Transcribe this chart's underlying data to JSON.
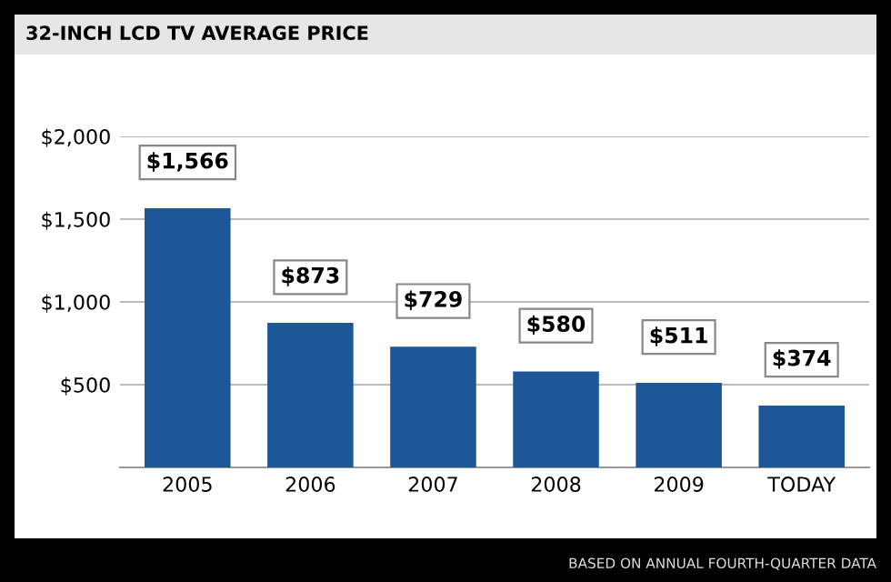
{
  "chart_data": {
    "type": "bar",
    "title": "32-INCH LCD TV AVERAGE PRICE",
    "categories": [
      "2005",
      "2006",
      "2007",
      "2008",
      "2009",
      "TODAY"
    ],
    "values": [
      1566,
      873,
      729,
      580,
      511,
      374
    ],
    "value_labels": [
      "$1,566",
      "$873",
      "$729",
      "$580",
      "$511",
      "$374"
    ],
    "color": "#1d5797",
    "ylim": [
      0,
      2000
    ],
    "yticks": [
      {
        "value": 0,
        "label": null
      },
      {
        "value": 500,
        "label": "$500"
      },
      {
        "value": 1000,
        "label": "$1,000"
      },
      {
        "value": 1500,
        "label": "$1,500"
      },
      {
        "value": 2000,
        "label": "$2,000"
      }
    ],
    "grid": "y",
    "annotations": [
      "BASED ON ANNUAL FOURTH-QUARTER DATA"
    ]
  }
}
